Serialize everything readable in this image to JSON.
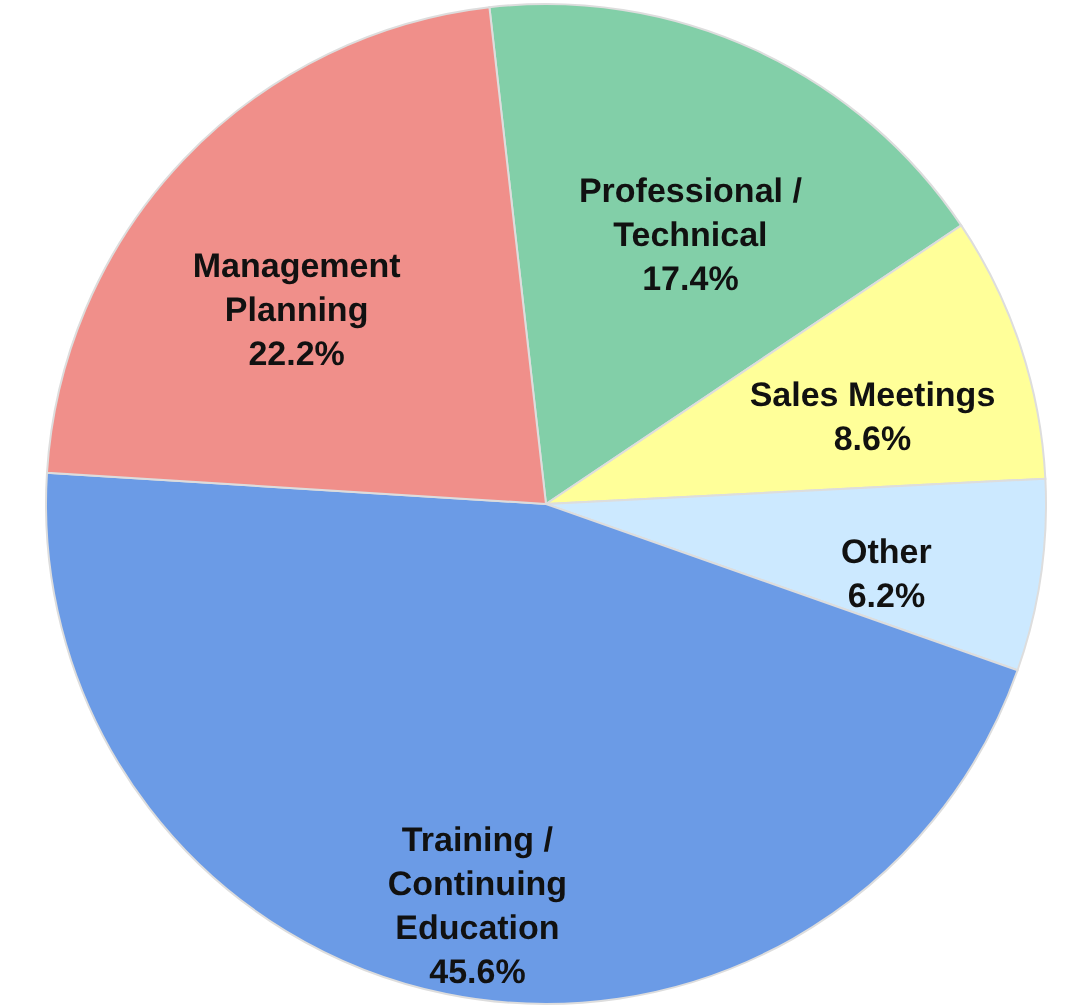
{
  "chart_data": {
    "type": "pie",
    "categories": [
      "Professional /\nTechnical",
      "Sales Meetings",
      "Other",
      "Training /\nContinuing\nEducation",
      "Management\nPlanning"
    ],
    "values": [
      17.4,
      8.6,
      6.2,
      45.6,
      22.2
    ],
    "colors": [
      "#82cfa8",
      "#ffff99",
      "#cce9ff",
      "#6b9be6",
      "#f08f8a"
    ],
    "value_labels": [
      "17.4%",
      "8.6%",
      "6.2%",
      "45.6%",
      "22.2%"
    ]
  }
}
